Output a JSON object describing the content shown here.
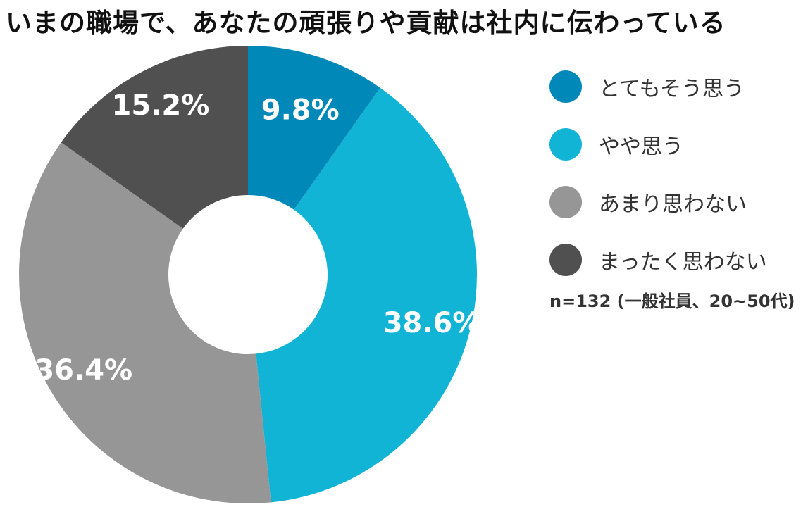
{
  "chart_data": {
    "type": "pie",
    "title": "いまの職場で、あなたの頑張りや貢献は社内に伝わっている",
    "categories": [
      "とてもそう思う",
      "やや思う",
      "あまり思わない",
      "まったく思わない"
    ],
    "values": [
      9.8,
      38.6,
      36.4,
      15.2
    ],
    "value_labels": [
      "9.8%",
      "38.6%",
      "36.4%",
      "15.2%"
    ],
    "colors": [
      "#0089B8",
      "#12B4D6",
      "#969696",
      "#505050"
    ],
    "legend_position": "right",
    "donut": true,
    "note": "n=132 (一般社員、20~50代)"
  }
}
